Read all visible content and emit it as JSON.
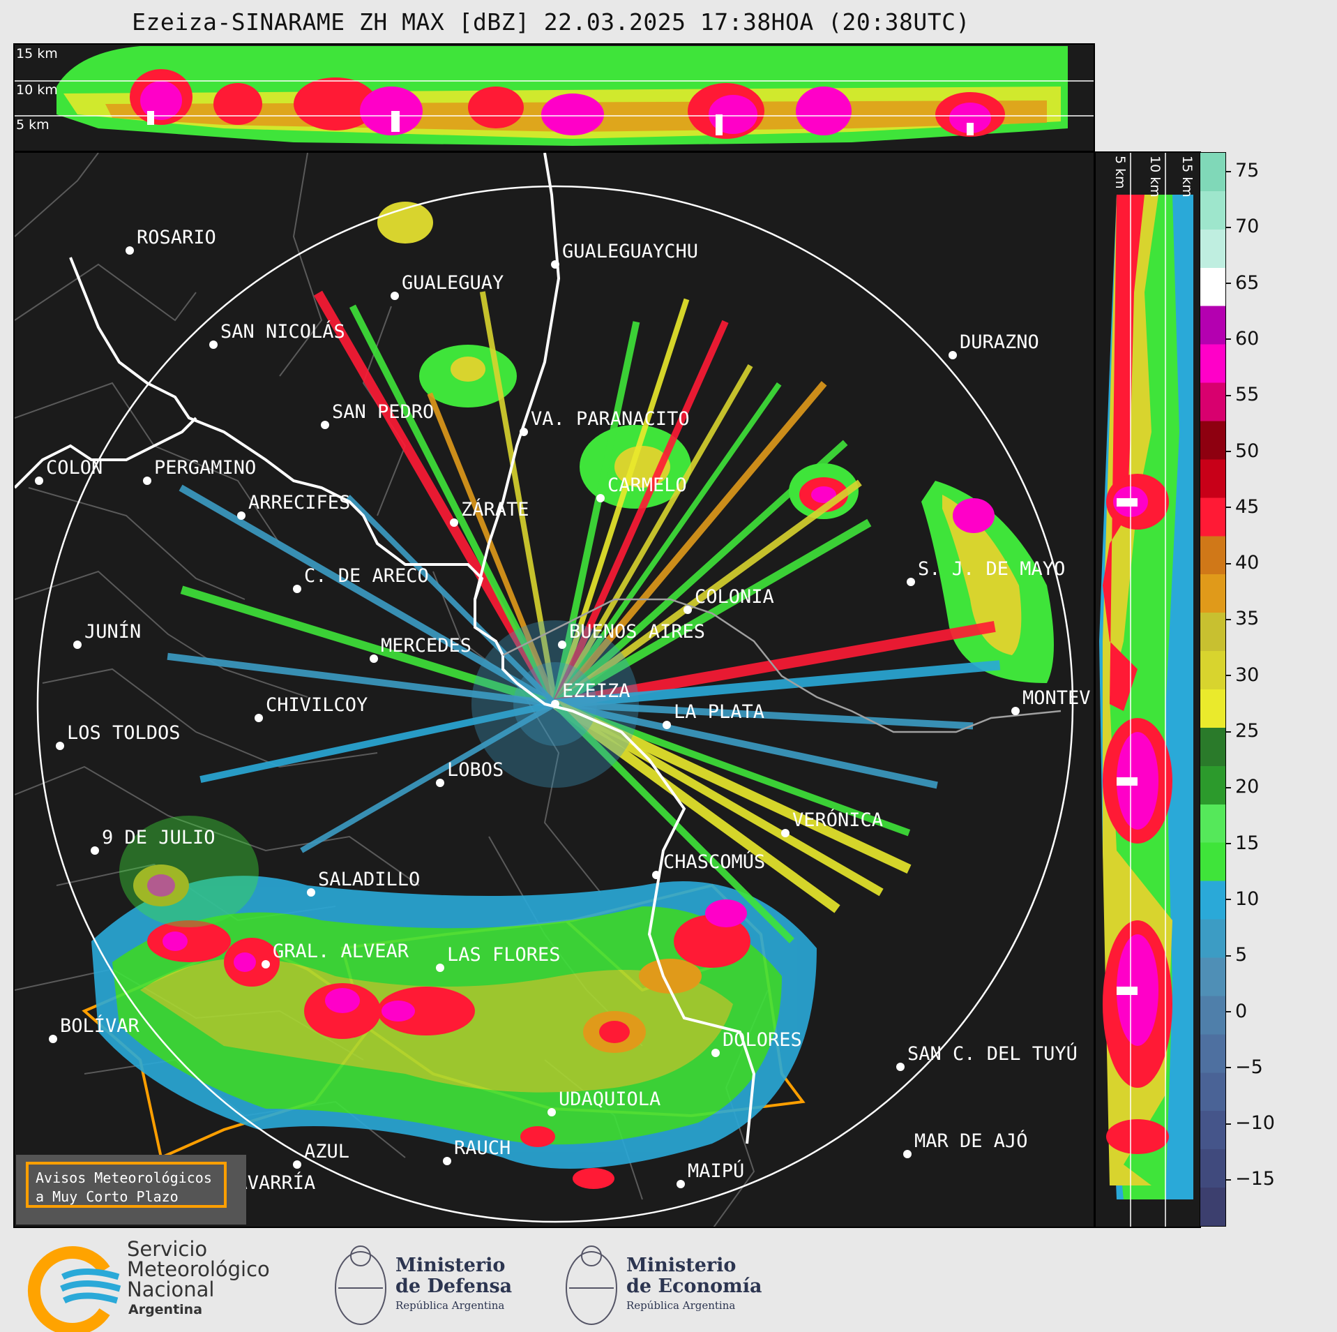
{
  "title": "Ezeiza-SINARAME ZH MAX [dBZ] 22.03.2025 17:38HOA (20:38UTC)",
  "height_labels": [
    "15 km",
    "10 km",
    "5 km"
  ],
  "colorbar": {
    "ticks": [
      "75",
      "70",
      "65",
      "60",
      "55",
      "50",
      "45",
      "40",
      "35",
      "30",
      "25",
      "20",
      "15",
      "10",
      "5",
      "0",
      "−5",
      "−10",
      "−15"
    ],
    "colors": [
      "#3c3f6e",
      "#404a7d",
      "#45558a",
      "#4a6396",
      "#4e70a0",
      "#4f7faa",
      "#4f8fb6",
      "#3c9cc4",
      "#2aa9d8",
      "#3fe43a",
      "#55e85a",
      "#2c9a2c",
      "#2a7a2a",
      "#eaea2c",
      "#d8d42e",
      "#c8c030",
      "#e09a1a",
      "#d07818",
      "#ff1a35",
      "#c80018",
      "#8e0010",
      "#d8006e",
      "#ff00c8",
      "#b400b0",
      "#ffffff",
      "#bfeee0",
      "#9ee6cc",
      "#80d8b8"
    ]
  },
  "cities": [
    {
      "name": "ROSARIO"
    },
    {
      "name": "GUALEGUAYCHU"
    },
    {
      "name": "GUALEGUAY"
    },
    {
      "name": "SAN NICOLÁS"
    },
    {
      "name": "DURAZNO"
    },
    {
      "name": "SAN PEDRO"
    },
    {
      "name": "VA. PARANACITO"
    },
    {
      "name": "COLON"
    },
    {
      "name": "PERGAMINO"
    },
    {
      "name": "CARMELO"
    },
    {
      "name": "ARRECIFES"
    },
    {
      "name": "ZÁRATE"
    },
    {
      "name": "S. J. DE MAYO"
    },
    {
      "name": "C. DE ARECO"
    },
    {
      "name": "COLONIA"
    },
    {
      "name": "JUNÍN"
    },
    {
      "name": "BUENOS AIRES"
    },
    {
      "name": "MERCEDES"
    },
    {
      "name": "EZEIZA"
    },
    {
      "name": "MONTEV"
    },
    {
      "name": "CHIVILCOY"
    },
    {
      "name": "LA PLATA"
    },
    {
      "name": "LOS TOLDOS"
    },
    {
      "name": "LOBOS"
    },
    {
      "name": "VERÓNICA"
    },
    {
      "name": "9 DE JULIO"
    },
    {
      "name": "CHASCOMÚS"
    },
    {
      "name": "SALADILLO"
    },
    {
      "name": "GRAL. ALVEAR"
    },
    {
      "name": "LAS FLORES"
    },
    {
      "name": "BOLÍVAR"
    },
    {
      "name": "DOLORES"
    },
    {
      "name": "SAN C. DEL TUYÚ"
    },
    {
      "name": "UDAQUIOLA"
    },
    {
      "name": "MAR DE AJÓ"
    },
    {
      "name": "AZUL"
    },
    {
      "name": "RAUCH"
    },
    {
      "name": "OLAVARRÍA"
    },
    {
      "name": "MAIPÚ"
    }
  ],
  "legend_box": {
    "line1": "Avisos Meteorológicos",
    "line2": "a Muy Corto Plazo",
    "color": "#ff9f00"
  },
  "logos": {
    "smn": {
      "line1": "Servicio",
      "line2": "Meteorológico",
      "line3": "Nacional",
      "line4": "Argentina"
    },
    "defensa": {
      "line1": "Ministerio",
      "line2": "de Defensa",
      "line3": "República Argentina"
    },
    "economia": {
      "line1": "Ministerio",
      "line2": "de Economía",
      "line3": "República Argentina"
    }
  }
}
